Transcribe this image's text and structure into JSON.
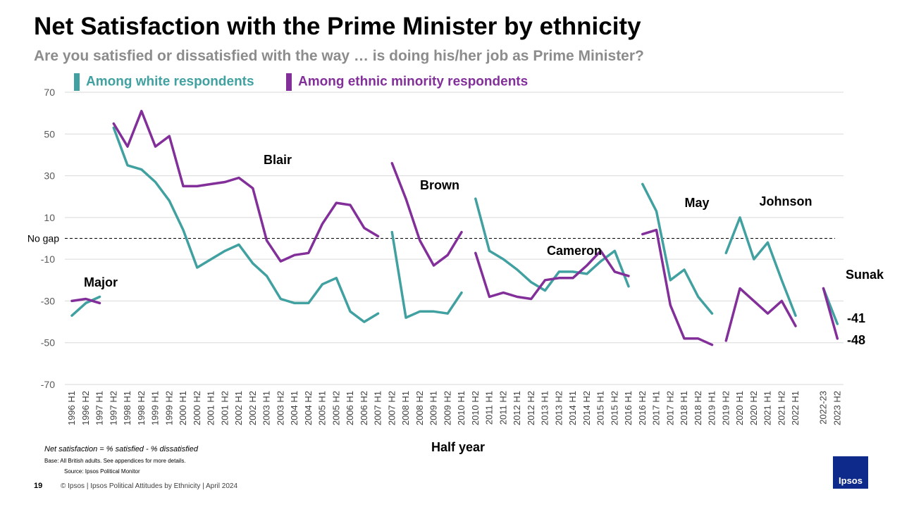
{
  "title": "Net Satisfaction with the Prime Minister by ethnicity",
  "subtitle": "Are you satisfied or dissatisfied with the way … is doing his/her job as Prime Minister?",
  "legend": {
    "white": "Among white respondents",
    "minority": "Among ethnic minority respondents"
  },
  "colors": {
    "white": "#41a0a0",
    "minority": "#822f9a"
  },
  "no_gap_label": "No gap",
  "xaxis_title": "Half year",
  "footnote": "Net satisfaction = % satisfied - % dissatisfied",
  "base_text": "Base: All British adults. See appendices for more details.",
  "source_text": "Source: Ipsos Political Monitor",
  "page_number": "19",
  "footer": "© Ipsos | Ipsos Political Attitudes by Ethnicity | April 2024",
  "logo_text": "Ipsos",
  "chart_data": {
    "type": "line",
    "title": "Net Satisfaction with the Prime Minister by ethnicity",
    "xlabel": "Half year",
    "ylabel": "",
    "ylim": [
      -70,
      70
    ],
    "yticks": [
      70,
      50,
      30,
      10,
      -10,
      -30,
      -50,
      -70
    ],
    "reference_line": {
      "value": 0,
      "label": "No gap"
    },
    "categories": [
      "1996 H1",
      "1996 H2",
      "1997 H1",
      "1997 H2",
      "1998 H1",
      "1998 H2",
      "1999 H1",
      "1999 H2",
      "2000 H1",
      "2000 H2",
      "2001 H1",
      "2001 H2",
      "2002 H1",
      "2002 H2",
      "2003 H1",
      "2003 H2",
      "2004 H1",
      "2004 H2",
      "2005 H1",
      "2005 H2",
      "2006 H1",
      "2006 H2",
      "2007 H1",
      "2007 H2",
      "2008 H1",
      "2008 H2",
      "2009 H1",
      "2009 H2",
      "2010 H1",
      "2010 H2",
      "2011 H1",
      "2011 H2",
      "2012 H1",
      "2012 H2",
      "2013 H1",
      "2013 H2",
      "2014 H1",
      "2014 H2",
      "2015 H1",
      "2015 H2",
      "2016 H1",
      "2016 H2",
      "2017 H1",
      "2017 H2",
      "2018 H1",
      "2018 H2",
      "2019 H1",
      "2019 H2",
      "2020 H1",
      "2020 H2",
      "2021 H1",
      "2021 H2",
      "2022 H1",
      "",
      "2022-23",
      "2023 H2"
    ],
    "series": [
      {
        "name": "Among white respondents",
        "color": "#41a0a0",
        "segments": [
          {
            "start": 0,
            "values": [
              -37,
              -31,
              -28
            ]
          },
          {
            "start": 3,
            "values": [
              53,
              35,
              33,
              27,
              18,
              4,
              -14,
              -10,
              -6,
              -3,
              -12,
              -18,
              -29,
              -31,
              -31,
              -22,
              -19,
              -35,
              -40,
              -36
            ]
          },
          {
            "start": 23,
            "values": [
              3,
              -38,
              -35,
              -35,
              -36,
              -26
            ]
          },
          {
            "start": 29,
            "values": [
              19,
              -6,
              -10,
              -15,
              -21,
              -25,
              -16,
              -16,
              -17,
              -11,
              -6,
              -23
            ]
          },
          {
            "start": 41,
            "values": [
              26,
              13,
              -20,
              -15,
              -28,
              -36
            ]
          },
          {
            "start": 47,
            "values": [
              -7,
              10,
              -10,
              -2,
              -20,
              -37
            ]
          },
          {
            "start": 54,
            "values": [
              -24,
              -41
            ]
          }
        ]
      },
      {
        "name": "Among ethnic minority respondents",
        "color": "#822f9a",
        "segments": [
          {
            "start": 0,
            "values": [
              -30,
              -29,
              -31
            ]
          },
          {
            "start": 3,
            "values": [
              55,
              44,
              61,
              44,
              49,
              25,
              25,
              26,
              27,
              29,
              24,
              -1,
              -11,
              -8,
              -7,
              7,
              17,
              16,
              5,
              1
            ]
          },
          {
            "start": 23,
            "values": [
              36,
              19,
              -1,
              -13,
              -8,
              3
            ]
          },
          {
            "start": 29,
            "values": [
              -7,
              -28,
              -26,
              -28,
              -29,
              -20,
              -19,
              -19,
              -13,
              -6,
              -16,
              -18
            ]
          },
          {
            "start": 41,
            "values": [
              2,
              4,
              -32,
              -48,
              -48,
              -51
            ]
          },
          {
            "start": 47,
            "values": [
              -49,
              -24,
              -30,
              -36,
              -30,
              -42
            ]
          },
          {
            "start": 54,
            "values": [
              -24,
              -48
            ]
          }
        ]
      }
    ],
    "annotations": [
      {
        "text": "Major",
        "index": 1
      },
      {
        "text": "Blair",
        "index": 14
      },
      {
        "text": "Brown",
        "index": 26
      },
      {
        "text": "Cameron",
        "index": 36
      },
      {
        "text": "May",
        "index": 44
      },
      {
        "text": "Johnson",
        "index": 50
      },
      {
        "text": "Sunak",
        "index": 55
      }
    ],
    "end_labels": [
      {
        "series": "Among white respondents",
        "text": "-41"
      },
      {
        "series": "Among ethnic minority respondents",
        "text": "-48"
      }
    ]
  }
}
